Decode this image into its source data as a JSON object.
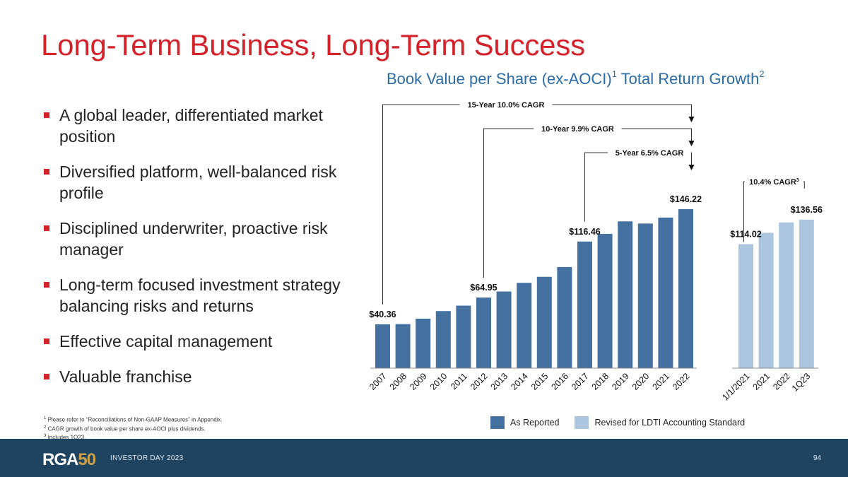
{
  "slide": {
    "title": "Long-Term Business, Long-Term Success",
    "chart_title_main": "Book Value per Share (ex-AOCI)",
    "chart_title_sup1": "1",
    "chart_title_rest": " Total Return Growth",
    "chart_title_sup2": "2"
  },
  "bullets": [
    "A global leader, differentiated market position",
    "Diversified platform, well-balanced risk profile",
    "Disciplined underwriter, proactive risk manager",
    "Long-term focused investment strategy balancing risks and returns",
    "Effective capital management",
    "Valuable franchise"
  ],
  "footnotes": [
    {
      "sup": "1",
      "text": " Please refer to “Reconciliations of Non-GAAP Measures” in Appendix."
    },
    {
      "sup": "2",
      "text": " CAGR growth of book value per share ex-AOCI plus dividends."
    },
    {
      "sup": "3",
      "text": " Includes 1Q23."
    }
  ],
  "legend": {
    "reported": "As Reported",
    "revised": "Revised for LDTI Accounting Standard"
  },
  "footer": {
    "logo_text": "RGA",
    "logo_number": "50",
    "event": "INVESTOR DAY 2023",
    "page": "94"
  },
  "colors": {
    "reported": "#4471a0",
    "revised": "#adc6df",
    "title": "#d3222a",
    "chart_title": "#2a6aa5",
    "footer": "#1e4461"
  },
  "chart_data": {
    "type": "bar",
    "title": "Book Value per Share (ex-AOCI)1 Total Return Growth2",
    "ylim": [
      0,
      165
    ],
    "grid": false,
    "legend_position": "bottom",
    "series": [
      {
        "name": "As Reported",
        "categories": [
          "2007",
          "2008",
          "2009",
          "2010",
          "2011",
          "2012",
          "2013",
          "2014",
          "2015",
          "2016",
          "2017",
          "2018",
          "2019",
          "2020",
          "2021",
          "2022"
        ],
        "values": [
          40.36,
          40.5,
          45.5,
          52.5,
          57.5,
          64.95,
          70.5,
          78.5,
          84.0,
          93.0,
          116.46,
          123.5,
          135.0,
          133.0,
          138.5,
          146.22
        ]
      },
      {
        "name": "Revised for LDTI Accounting Standard",
        "categories": [
          "1/1/2021",
          "2021",
          "2022",
          "1Q23"
        ],
        "values": [
          114.02,
          124.5,
          134.0,
          136.56
        ]
      }
    ],
    "data_labels": [
      {
        "series": 0,
        "index": 0,
        "text": "$40.36"
      },
      {
        "series": 0,
        "index": 5,
        "text": "$64.95"
      },
      {
        "series": 0,
        "index": 10,
        "text": "$116.46"
      },
      {
        "series": 0,
        "index": 15,
        "text": "$146.22"
      },
      {
        "series": 1,
        "index": 0,
        "text": "$114.02"
      },
      {
        "series": 1,
        "index": 3,
        "text": "$136.56"
      }
    ],
    "annotations": [
      {
        "text": "15-Year 10.0% CAGR",
        "from": {
          "series": 0,
          "index": 0
        },
        "to": {
          "series": 0,
          "index": 15
        }
      },
      {
        "text": "10-Year 9.9% CAGR",
        "from": {
          "series": 0,
          "index": 5
        },
        "to": {
          "series": 0,
          "index": 15
        }
      },
      {
        "text": "5-Year 6.5% CAGR",
        "from": {
          "series": 0,
          "index": 10
        },
        "to": {
          "series": 0,
          "index": 15
        }
      },
      {
        "text": "10.4% CAGR",
        "sup": "3",
        "from": {
          "series": 1,
          "index": 0
        },
        "to": {
          "series": 1,
          "index": 3
        }
      }
    ]
  }
}
